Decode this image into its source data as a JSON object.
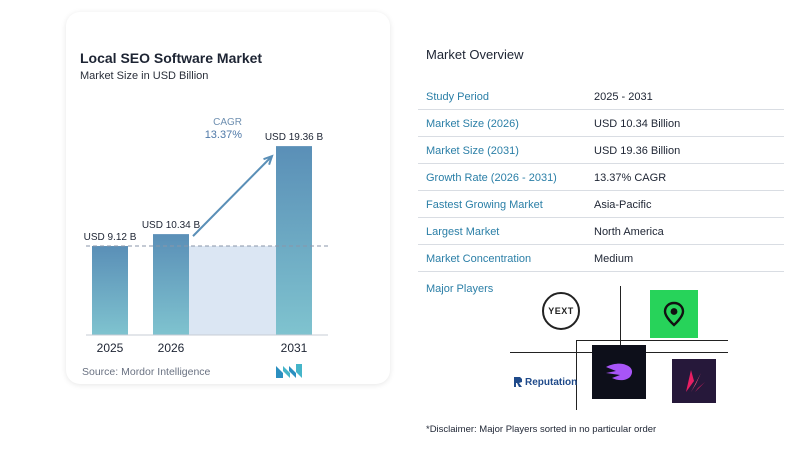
{
  "chart_data": {
    "type": "bar",
    "title": "Local SEO Software Market",
    "subtitle": "Market Size in USD Billion",
    "categories": [
      "2025",
      "2026",
      "2031"
    ],
    "values": [
      9.12,
      10.34,
      19.36
    ],
    "value_labels": [
      "USD 9.12 B",
      "USD 10.34 B",
      "USD 19.36 B"
    ],
    "ylim": [
      0,
      20.5
    ],
    "cagr_label": "CAGR",
    "cagr_value": "13.37%",
    "colors": {
      "bar_light": "#7fc3cf",
      "bar_dark": "#5a8fb7",
      "band": "#dbe6f3",
      "arrow": "#5a8fb7"
    }
  },
  "source": "Source: Mordor Intelligence",
  "overview": {
    "title": "Market Overview",
    "rows": [
      {
        "label": "Study Period",
        "value": "2025 - 2031"
      },
      {
        "label": "Market Size (2026)",
        "value": "USD 10.34 Billion"
      },
      {
        "label": "Market Size (2031)",
        "value": "USD 19.36 Billion"
      },
      {
        "label": "Growth Rate (2026 - 2031)",
        "value": "13.37% CAGR"
      },
      {
        "label": "Fastest Growing Market",
        "value": "Asia-Pacific"
      },
      {
        "label": "Largest Market",
        "value": "North America"
      },
      {
        "label": "Market Concentration",
        "value": "Medium"
      }
    ]
  },
  "players": {
    "title": "Major Players",
    "yext": "YEXT",
    "reputation": "Reputation"
  },
  "disclaimer": "*Disclaimer: Major Players sorted in no particular order"
}
